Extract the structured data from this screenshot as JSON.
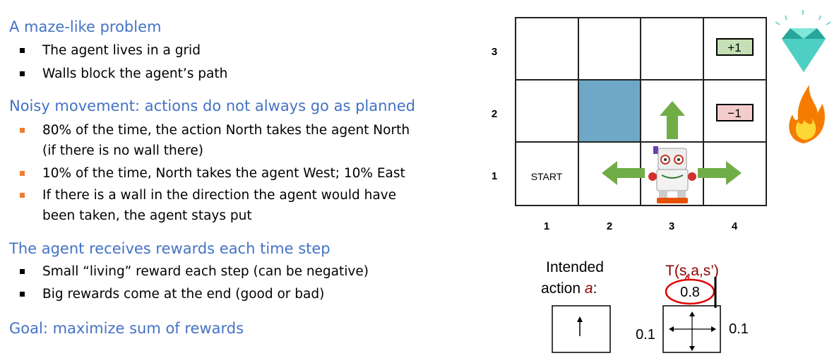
{
  "left": {
    "sections": [
      {
        "heading": "A maze-like problem",
        "bullets": [
          "The agent lives in a grid",
          "Walls block the agent’s path"
        ]
      },
      {
        "heading": "Noisy movement: actions do not always go as planned",
        "bullets": [
          "80% of the time, the action North takes the agent North",
          "(if there is no wall there)",
          "10% of the time, North takes the agent West; 10% East",
          "If there is a wall in the direction the agent would have",
          "been taken, the agent stays put"
        ]
      },
      {
        "heading": "The agent receives rewards each time step",
        "bullets": [
          "Small “living” reward each step (can be negative)",
          "Big rewards come at the end (good or bad)"
        ]
      },
      {
        "heading": "Goal: maximize sum of rewards"
      }
    ]
  },
  "grid": {
    "row_labels": [
      "3",
      "2",
      "1"
    ],
    "col_labels": [
      "1",
      "2",
      "3",
      "4"
    ],
    "start_label": "START",
    "plus_reward": "+1",
    "minus_reward": "−1"
  },
  "transition": {
    "intended_line1": "Intended",
    "intended_line2": "action ",
    "intended_a": "a",
    "intended_colon": ":",
    "t_label": "T(s,a,s’)",
    "center_prob": "0.8",
    "left_prob": "0.1",
    "right_prob": "0.1"
  },
  "colors": {
    "heading": "#4472c4",
    "wall": "#6fa8c7",
    "arrow": "#70ad47",
    "plus_bg": "#c5e0b4",
    "minus_bg": "#f4cccc",
    "t_label": "#8b0000",
    "circle": "#e00000"
  },
  "icons": [
    "diamond-icon",
    "fire-icon",
    "robot-agent-icon"
  ]
}
